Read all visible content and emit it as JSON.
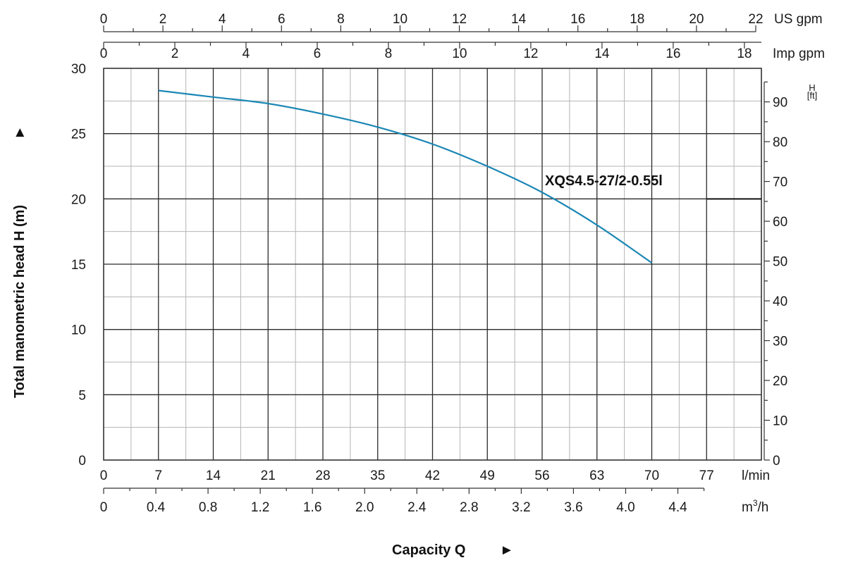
{
  "chart_data": {
    "type": "line",
    "title": "",
    "ylabel": "Total manometric head H (m)",
    "xlabel": "Capacity Q",
    "arrow_glyph": "►",
    "y_left": {
      "unit": "",
      "ylim": [
        0,
        30
      ],
      "ticks": [
        "0",
        "5",
        "10",
        "15",
        "20",
        "25",
        "30"
      ]
    },
    "y_right": {
      "unit_top": "H",
      "unit_bottom": "[ft]",
      "ticks": [
        "0",
        "10",
        "20",
        "30",
        "40",
        "50",
        "60",
        "70",
        "80",
        "90"
      ],
      "values": [
        0,
        10,
        20,
        30,
        40,
        50,
        60,
        70,
        80,
        90
      ],
      "ft_per_m": 3.28084
    },
    "x_primary": {
      "unit": "l/min",
      "xlim": [
        0,
        84
      ],
      "ticks": [
        "0",
        "7",
        "14",
        "21",
        "28",
        "35",
        "42",
        "49",
        "56",
        "63",
        "70",
        "77"
      ],
      "values": [
        0,
        7,
        14,
        21,
        28,
        35,
        42,
        49,
        56,
        63,
        70,
        77
      ]
    },
    "x_m3h": {
      "unit_base": "m",
      "unit_sup": "3",
      "unit_tail": "/h",
      "ticks": [
        "0",
        "0.4",
        "0.8",
        "1.2",
        "1.6",
        "2.0",
        "2.4",
        "2.8",
        "3.2",
        "3.6",
        "4.0",
        "4.4"
      ],
      "values": [
        0,
        0.4,
        0.8,
        1.2,
        1.6,
        2.0,
        2.4,
        2.8,
        3.2,
        3.6,
        4.0,
        4.4
      ],
      "lmin_per_unit": 16.6667
    },
    "x_us_gpm": {
      "unit": "US gpm",
      "ticks": [
        "0",
        "2",
        "4",
        "6",
        "8",
        "10",
        "12",
        "14",
        "16",
        "18",
        "20",
        "22"
      ],
      "values": [
        0,
        2,
        4,
        6,
        8,
        10,
        12,
        14,
        16,
        18,
        20,
        22
      ],
      "lmin_per_unit": 3.78541
    },
    "x_imp_gpm": {
      "unit": "Imp gpm",
      "ticks": [
        "0",
        "2",
        "4",
        "6",
        "8",
        "10",
        "12",
        "14",
        "16",
        "18"
      ],
      "values": [
        0,
        2,
        4,
        6,
        8,
        10,
        12,
        14,
        16,
        18
      ],
      "lmin_per_unit": 4.54609
    },
    "grid": true,
    "series": [
      {
        "name": "XQS4.5-27/2-0.55l",
        "color": "#1b87b5",
        "x": [
          7,
          14,
          21,
          28,
          35,
          42,
          49,
          56,
          63,
          70
        ],
        "y": [
          28.3,
          27.8,
          27.3,
          26.5,
          25.5,
          24.2,
          22.5,
          20.5,
          18.0,
          15.1
        ]
      }
    ],
    "series_label_at_x": 56,
    "series_label_at_y": 20.5,
    "reference_line": {
      "y": 20,
      "x_from": 77,
      "x_to": 84
    }
  }
}
